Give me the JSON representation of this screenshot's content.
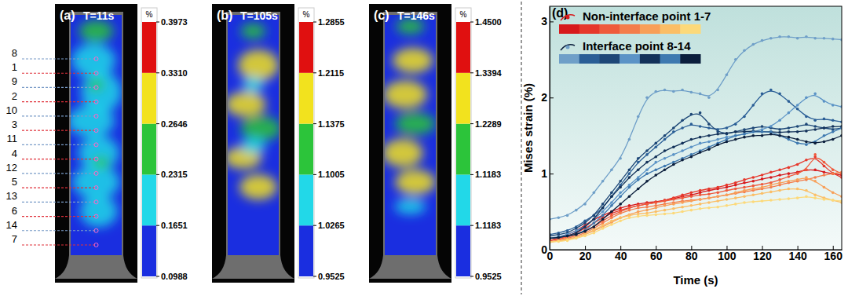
{
  "chart_data": [
    {
      "type": "image",
      "panel_label": "(a)",
      "time_label": "T=11s",
      "colorbar_unit": "%",
      "colorbar_ticks": [
        0.0988,
        0.1651,
        0.2315,
        0.2646,
        {
          "value": 0.331,
          "label": "0.3310"
        },
        0.3973
      ],
      "colors": [
        "#1a2ee0",
        "#22d8e8",
        "#2cc43a",
        "#f2e21e",
        "#e01010"
      ],
      "point_labels": [
        "8",
        "1",
        "9",
        "2",
        "10",
        "3",
        "11",
        "4",
        "12",
        "5",
        "13",
        "6",
        "14",
        "7"
      ]
    },
    {
      "type": "image",
      "panel_label": "(b)",
      "time_label": "T=105s",
      "colorbar_unit": "%",
      "colorbar_ticks": [
        0.9525,
        1.0265,
        1.1005,
        1.1375,
        1.2115,
        1.2855
      ],
      "colors": [
        "#1a2ee0",
        "#22d8e8",
        "#2cc43a",
        "#f2e21e",
        "#e01010"
      ]
    },
    {
      "type": "image",
      "panel_label": "(c)",
      "time_label": "T=146s",
      "colorbar_unit": "%",
      "colorbar_ticks": [
        0.9525,
        1.1183,
        1.1183,
        1.2289,
        1.3394,
        {
          "value": 1.45,
          "label": "1.4500"
        }
      ],
      "colors": [
        "#1a2ee0",
        "#22d8e8",
        "#2cc43a",
        "#f2e21e",
        "#e01010"
      ]
    },
    {
      "type": "line",
      "panel_label": "(d)",
      "x_label": "Time (s)",
      "y_label": "Mises strain (%)",
      "marker": "circle",
      "line_style": "solid",
      "xlim": [
        0,
        165
      ],
      "xticks": [
        0,
        20,
        40,
        60,
        80,
        100,
        120,
        140,
        160
      ],
      "ylim": [
        0,
        3.2
      ],
      "yticks": [
        0,
        1,
        2,
        3
      ],
      "legend": "upper left",
      "x": [
        0,
        5,
        10,
        15,
        20,
        25,
        30,
        35,
        40,
        45,
        50,
        55,
        60,
        65,
        70,
        75,
        80,
        85,
        90,
        95,
        100,
        105,
        110,
        115,
        120,
        125,
        130,
        135,
        140,
        145,
        150,
        155,
        160,
        165
      ],
      "groups": [
        {
          "name": "Non-interface point 1-7",
          "series": [
            {
              "color": "#d7191c",
              "values": [
                0.12,
                0.15,
                0.2,
                0.25,
                0.32,
                0.4,
                0.45,
                0.5,
                0.55,
                0.58,
                0.6,
                0.62,
                0.63,
                0.65,
                0.67,
                0.7,
                0.72,
                0.75,
                0.78,
                0.8,
                0.82,
                0.85,
                0.88,
                0.9,
                0.93,
                0.95,
                0.98,
                1.0,
                1.02,
                1.05,
                1.05,
                1.02,
                1.0,
                0.98
              ]
            },
            {
              "color": "#e6372b",
              "values": [
                0.12,
                0.14,
                0.18,
                0.22,
                0.28,
                0.35,
                0.42,
                0.48,
                0.52,
                0.55,
                0.58,
                0.6,
                0.62,
                0.65,
                0.68,
                0.72,
                0.75,
                0.78,
                0.8,
                0.82,
                0.85,
                0.88,
                0.92,
                0.95,
                0.98,
                1.02,
                1.05,
                1.08,
                1.12,
                1.18,
                1.22,
                1.1,
                1.0,
                0.95
              ]
            },
            {
              "color": "#ef5a3c",
              "values": [
                0.12,
                0.14,
                0.16,
                0.2,
                0.25,
                0.3,
                0.38,
                0.45,
                0.5,
                0.55,
                0.58,
                0.6,
                0.62,
                0.64,
                0.66,
                0.68,
                0.7,
                0.72,
                0.73,
                0.75,
                0.78,
                0.8,
                0.82,
                0.84,
                0.86,
                0.88,
                0.92,
                0.96,
                1.0,
                1.05,
                1.25,
                1.15,
                1.05,
                1.0
              ]
            },
            {
              "color": "#f47d4b",
              "values": [
                0.1,
                0.12,
                0.15,
                0.18,
                0.22,
                0.28,
                0.35,
                0.42,
                0.48,
                0.52,
                0.55,
                0.56,
                0.58,
                0.6,
                0.62,
                0.64,
                0.65,
                0.66,
                0.68,
                0.7,
                0.72,
                0.74,
                0.76,
                0.78,
                0.8,
                0.82,
                0.85,
                0.88,
                0.9,
                0.92,
                0.95,
                0.98,
                1.0,
                1.02
              ]
            },
            {
              "color": "#f89f58",
              "values": [
                0.1,
                0.12,
                0.14,
                0.16,
                0.2,
                0.25,
                0.3,
                0.36,
                0.42,
                0.46,
                0.5,
                0.52,
                0.55,
                0.58,
                0.6,
                0.62,
                0.64,
                0.66,
                0.68,
                0.7,
                0.72,
                0.75,
                0.78,
                0.8,
                0.82,
                0.85,
                0.88,
                0.9,
                0.92,
                0.95,
                0.9,
                0.82,
                0.75,
                0.7
              ]
            },
            {
              "color": "#fbbe66",
              "values": [
                0.1,
                0.11,
                0.13,
                0.16,
                0.2,
                0.26,
                0.32,
                0.38,
                0.42,
                0.45,
                0.47,
                0.48,
                0.5,
                0.52,
                0.54,
                0.56,
                0.58,
                0.6,
                0.62,
                0.64,
                0.66,
                0.68,
                0.7,
                0.72,
                0.74,
                0.76,
                0.78,
                0.8,
                0.8,
                0.78,
                0.72,
                0.68,
                0.65,
                0.62
              ]
            },
            {
              "color": "#fcd97a",
              "values": [
                0.1,
                0.11,
                0.12,
                0.15,
                0.18,
                0.22,
                0.28,
                0.33,
                0.38,
                0.42,
                0.44,
                0.45,
                0.46,
                0.47,
                0.48,
                0.5,
                0.52,
                0.54,
                0.55,
                0.56,
                0.58,
                0.6,
                0.62,
                0.63,
                0.64,
                0.65,
                0.66,
                0.67,
                0.68,
                0.7,
                0.68,
                0.66,
                0.65,
                0.64
              ]
            }
          ]
        },
        {
          "name": "Interface point 8-14",
          "series": [
            {
              "color": "#6f9fc8",
              "values": [
                0.4,
                0.42,
                0.45,
                0.52,
                0.6,
                0.75,
                0.9,
                1.05,
                1.2,
                1.45,
                1.75,
                2.0,
                2.08,
                2.1,
                2.08,
                2.1,
                2.07,
                2.05,
                2.0,
                2.1,
                2.3,
                2.5,
                2.62,
                2.7,
                2.75,
                2.78,
                2.8,
                2.8,
                2.78,
                2.8,
                2.78,
                2.78,
                2.77,
                2.76
              ]
            },
            {
              "color": "#2a5e96",
              "values": [
                0.2,
                0.22,
                0.25,
                0.3,
                0.38,
                0.45,
                0.55,
                0.7,
                0.85,
                1.0,
                1.15,
                1.25,
                1.35,
                1.45,
                1.55,
                1.6,
                1.65,
                1.62,
                1.6,
                1.58,
                1.6,
                1.65,
                1.75,
                1.9,
                2.05,
                2.1,
                2.05,
                1.95,
                1.85,
                1.75,
                1.7,
                1.72,
                1.7,
                1.68
              ]
            },
            {
              "color": "#1d4777",
              "values": [
                0.18,
                0.2,
                0.22,
                0.28,
                0.35,
                0.45,
                0.6,
                0.75,
                0.9,
                1.05,
                1.2,
                1.3,
                1.4,
                1.5,
                1.6,
                1.7,
                1.78,
                1.8,
                1.65,
                1.55,
                1.52,
                1.55,
                1.58,
                1.6,
                1.62,
                1.6,
                1.58,
                1.6,
                1.62,
                1.65,
                1.62,
                1.6,
                1.58,
                1.6
              ]
            },
            {
              "color": "#5b93c6",
              "values": [
                0.15,
                0.17,
                0.2,
                0.25,
                0.3,
                0.4,
                0.5,
                0.62,
                0.75,
                0.85,
                0.95,
                1.05,
                1.15,
                1.2,
                1.25,
                1.3,
                1.35,
                1.4,
                1.42,
                1.45,
                1.48,
                1.5,
                1.52,
                1.55,
                1.58,
                1.62,
                1.7,
                1.8,
                1.9,
                2.0,
                2.05,
                1.95,
                1.9,
                1.88
              ]
            },
            {
              "color": "#13325a",
              "values": [
                0.15,
                0.16,
                0.18,
                0.22,
                0.3,
                0.4,
                0.55,
                0.7,
                0.82,
                0.95,
                1.05,
                1.15,
                1.22,
                1.3,
                1.35,
                1.4,
                1.45,
                1.48,
                1.5,
                1.52,
                1.53,
                1.55,
                1.55,
                1.56,
                1.55,
                1.55,
                1.54,
                1.55,
                1.55,
                1.56,
                1.58,
                1.6,
                1.62,
                1.62
              ]
            },
            {
              "color": "#3e79b0",
              "values": [
                0.15,
                0.16,
                0.18,
                0.2,
                0.25,
                0.35,
                0.45,
                0.58,
                0.7,
                0.82,
                0.92,
                1.0,
                1.05,
                1.1,
                1.15,
                1.2,
                1.25,
                1.3,
                1.35,
                1.4,
                1.45,
                1.5,
                1.52,
                1.55,
                1.55,
                1.55,
                1.5,
                1.45,
                1.4,
                1.38,
                1.42,
                1.5,
                1.55,
                1.6
              ]
            },
            {
              "color": "#0b1e3c",
              "values": [
                0.15,
                0.16,
                0.18,
                0.2,
                0.24,
                0.3,
                0.4,
                0.5,
                0.6,
                0.7,
                0.8,
                0.9,
                0.98,
                1.05,
                1.12,
                1.18,
                1.22,
                1.28,
                1.32,
                1.38,
                1.42,
                1.45,
                1.48,
                1.5,
                1.5,
                1.52,
                1.5,
                1.48,
                1.45,
                1.42,
                1.4,
                1.42,
                1.45,
                1.5
              ]
            }
          ]
        }
      ]
    }
  ]
}
